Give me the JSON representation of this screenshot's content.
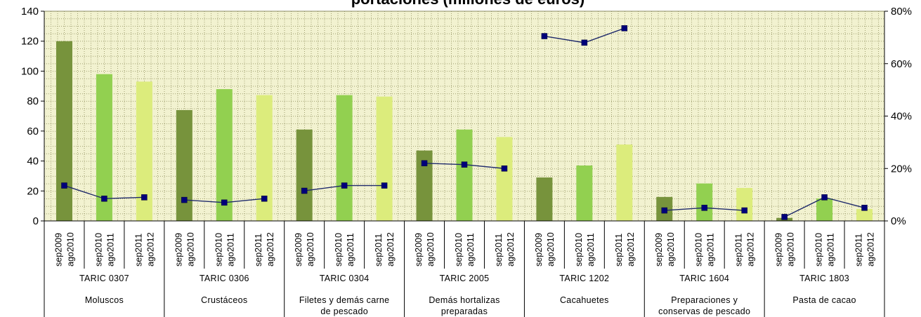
{
  "chart_data": {
    "type": "bar",
    "title": "portaciones (millones de euros)",
    "y_left": {
      "range": [
        0,
        140
      ],
      "ticks": [
        "0",
        "20",
        "40",
        "60",
        "80",
        "100",
        "120",
        "140"
      ]
    },
    "y_right": {
      "range": [
        0,
        80
      ],
      "ticks": [
        "0%",
        "20%",
        "40%",
        "60%",
        "80%"
      ]
    },
    "grid": true,
    "groups": [
      {
        "code": "TARIC 0307",
        "name_lines": [
          "Moluscos"
        ]
      },
      {
        "code": "TARIC 0306",
        "name_lines": [
          "Crustáceos"
        ]
      },
      {
        "code": "TARIC 0304",
        "name_lines": [
          "Filetes y demás carne",
          "de pescado"
        ]
      },
      {
        "code": "TARIC 2005",
        "name_lines": [
          "Demás hortalizas",
          "preparadas"
        ]
      },
      {
        "code": "TARIC 1202",
        "name_lines": [
          "Cacahuetes"
        ]
      },
      {
        "code": "TARIC 1604",
        "name_lines": [
          "Preparaciones y",
          "conservas de pescado"
        ]
      },
      {
        "code": "TARIC 1803",
        "name_lines": [
          "Pasta de cacao"
        ]
      }
    ],
    "periods": [
      {
        "start": "sep2009",
        "end": "ago2010"
      },
      {
        "start": "sep2010",
        "end": "ago2011"
      },
      {
        "start": "sep2011",
        "end": "ago2012"
      }
    ],
    "bar_colors": [
      "#77933c",
      "#92d050",
      "#dcec7c"
    ],
    "bar_values": [
      [
        120,
        98,
        93
      ],
      [
        74,
        88,
        84
      ],
      [
        61,
        84,
        83
      ],
      [
        47,
        61,
        56
      ],
      [
        29,
        37,
        51
      ],
      [
        16,
        25,
        22
      ],
      [
        2,
        15,
        8
      ]
    ],
    "line_color": "#1f2a6b",
    "line_marker_color": "#00007a",
    "line_values_pct": [
      [
        13.5,
        8.5,
        9
      ],
      [
        8,
        7,
        8.5
      ],
      [
        11.5,
        13.5,
        13.5
      ],
      [
        22,
        21.5,
        20
      ],
      [
        70.5,
        68,
        73.5
      ],
      [
        4,
        5,
        4
      ],
      [
        1.5,
        9,
        5
      ]
    ],
    "grid_color": "#a0a070",
    "plot_background": "#f2f2d0"
  }
}
